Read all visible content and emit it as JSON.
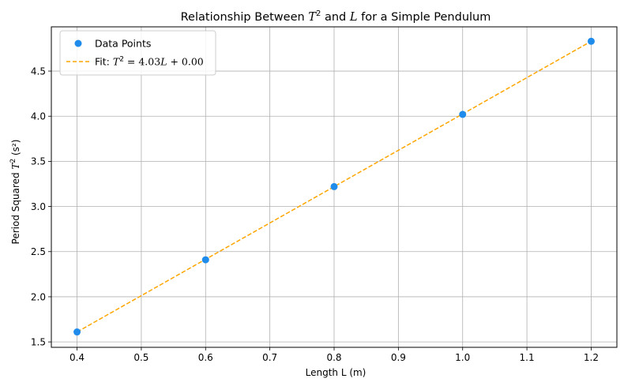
{
  "chart_data": {
    "type": "scatter",
    "title": {
      "prefix": "Relationship Between ",
      "var1": "T",
      "var1_exp": "2",
      "middle": " and ",
      "var2": "L",
      "suffix": " for a Simple Pendulum"
    },
    "xlabel": "Length L (m)",
    "ylabel": {
      "prefix": "Period Squared ",
      "var": "T",
      "exp": "2",
      "suffix": " (s²)"
    },
    "xlim": [
      0.36,
      1.24
    ],
    "ylim": [
      1.44,
      4.99
    ],
    "xticks": [
      {
        "value": 0.4,
        "label": "0.4"
      },
      {
        "value": 0.5,
        "label": "0.5"
      },
      {
        "value": 0.6,
        "label": "0.6"
      },
      {
        "value": 0.7,
        "label": "0.7"
      },
      {
        "value": 0.8,
        "label": "0.8"
      },
      {
        "value": 0.9,
        "label": "0.9"
      },
      {
        "value": 1.0,
        "label": "1.0"
      },
      {
        "value": 1.1,
        "label": "1.1"
      },
      {
        "value": 1.2,
        "label": "1.2"
      }
    ],
    "yticks": [
      {
        "value": 1.5,
        "label": "1.5"
      },
      {
        "value": 2.0,
        "label": "2.0"
      },
      {
        "value": 2.5,
        "label": "2.5"
      },
      {
        "value": 3.0,
        "label": "3.0"
      },
      {
        "value": 3.5,
        "label": "3.5"
      },
      {
        "value": 4.0,
        "label": "4.0"
      },
      {
        "value": 4.5,
        "label": "4.5"
      }
    ],
    "grid": true,
    "legend_position": "top-left",
    "series": [
      {
        "name": "Data Points",
        "kind": "scatter",
        "color": "#1f8ceb",
        "x": [
          0.4,
          0.6,
          0.8,
          1.0,
          1.2
        ],
        "y": [
          1.61,
          2.41,
          3.22,
          4.02,
          4.83
        ]
      },
      {
        "name": "Fit",
        "kind": "line",
        "style": "dashed",
        "color": "#ffa500",
        "legend": {
          "prefix": "Fit: ",
          "var1": "T",
          "var1_exp": "2",
          "eq": " = 4.03",
          "var2": "L",
          "suffix": " + 0.00"
        },
        "x": [
          0.4,
          1.2
        ],
        "y": [
          1.61,
          4.83
        ]
      }
    ]
  }
}
